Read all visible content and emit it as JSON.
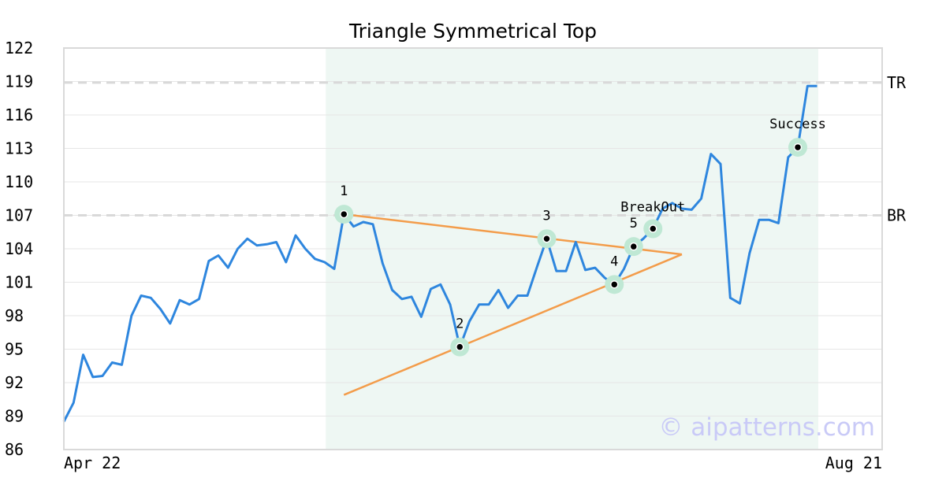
{
  "chart_data": {
    "type": "line",
    "title": "Triangle Symmetrical Top",
    "xlabel": "",
    "ylabel": "",
    "ylim": [
      86,
      122
    ],
    "yticks": [
      86,
      89,
      92,
      95,
      98,
      101,
      104,
      107,
      110,
      113,
      116,
      119,
      122
    ],
    "x_tick_labels": {
      "start": "Apr 22",
      "end": "Aug 21"
    },
    "grid": "horizontal",
    "colors": {
      "price": "#2e86de",
      "trendline": "#f39c4a",
      "pattern_region": "#eef7f3",
      "marker_halo": "#bfe8d4",
      "marker_dot": "#000000",
      "level_line": "#d9d9d9",
      "watermark": "#c9caf7"
    },
    "series": [
      {
        "values": [
          88.5,
          90.2,
          94.5,
          92.5,
          92.6,
          93.8,
          93.6,
          98.0,
          99.8,
          99.6,
          98.6,
          97.3,
          99.4,
          99.0,
          99.5,
          102.9,
          103.4,
          102.3,
          104.0,
          104.9,
          104.3,
          104.4,
          104.6,
          102.8,
          105.2,
          104.0,
          103.1,
          102.8,
          102.2,
          107.1,
          106.0,
          106.4,
          106.2,
          102.7,
          100.3,
          99.5,
          99.7,
          97.9,
          100.4,
          100.8,
          99.0,
          95.2,
          97.5,
          99.0,
          99.0,
          100.3,
          98.7,
          99.8,
          99.8,
          102.4,
          104.9,
          102.0,
          102.0,
          104.6,
          102.1,
          102.3,
          101.4,
          100.8,
          102.2,
          104.2,
          104.9,
          105.8,
          107.6,
          108.1,
          107.6,
          107.5,
          108.5,
          112.5,
          111.6,
          99.6,
          99.1,
          103.6,
          106.6,
          106.6,
          106.3,
          112.2,
          113.1,
          118.6,
          118.6
        ]
      }
    ],
    "pattern_region": {
      "start_index": 27,
      "end_index": 78
    },
    "levels": [
      {
        "label": "TR",
        "value": 118.9
      },
      {
        "label": "BR",
        "value": 107.0
      }
    ],
    "trendlines": [
      {
        "from": {
          "index": 29,
          "value": 107.1
        },
        "to": {
          "index": 64,
          "value": 103.5
        }
      },
      {
        "from": {
          "index": 29,
          "value": 90.9
        },
        "to": {
          "index": 64,
          "value": 103.5
        }
      }
    ],
    "points": [
      {
        "label": "1",
        "index": 29,
        "value": 107.1
      },
      {
        "label": "2",
        "index": 41,
        "value": 95.2
      },
      {
        "label": "3",
        "index": 50,
        "value": 104.9
      },
      {
        "label": "4",
        "index": 57,
        "value": 100.8
      },
      {
        "label": "5",
        "index": 59,
        "value": 104.2
      },
      {
        "label": "BreakOut",
        "index": 61,
        "value": 105.8
      },
      {
        "label": "Success",
        "index": 76,
        "value": 113.1
      }
    ],
    "watermark": "© aipatterns.com"
  }
}
